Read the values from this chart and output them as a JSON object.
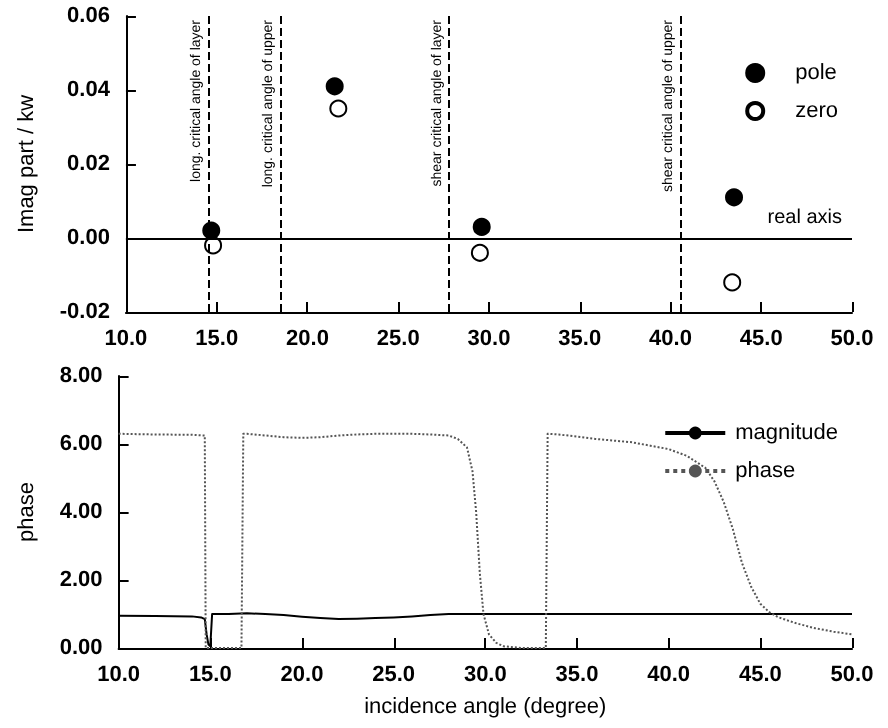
{
  "chart_data": [
    {
      "type": "scatter",
      "ylabel": "Imag part / kw",
      "xlim": [
        10,
        50
      ],
      "xticks": [
        {
          "value": 10,
          "label": "10.0"
        },
        {
          "value": 15,
          "label": "15.0"
        },
        {
          "value": 20,
          "label": "20.0"
        },
        {
          "value": 25,
          "label": "25.0"
        },
        {
          "value": 30,
          "label": "30.0"
        },
        {
          "value": 35,
          "label": "35.0"
        },
        {
          "value": 40,
          "label": "40.0"
        },
        {
          "value": 45,
          "label": "45.0"
        },
        {
          "value": 50,
          "label": "50.0"
        }
      ],
      "ylim": [
        -0.02,
        0.06
      ],
      "yticks": [
        {
          "value": -0.02,
          "label": "-0.02"
        },
        {
          "value": 0,
          "label": "0.00"
        },
        {
          "value": 0.02,
          "label": "0.02"
        },
        {
          "value": 0.04,
          "label": "0.04"
        },
        {
          "value": 0.06,
          "label": "0.06"
        }
      ],
      "series": [
        {
          "name": "pole",
          "color": "#000000",
          "x": [
            14.7,
            21.5,
            29.6,
            43.5
          ],
          "values": [
            0.002,
            0.041,
            0.003,
            0.011
          ]
        },
        {
          "name": "zero",
          "color": "#ffffff",
          "x": [
            14.8,
            21.7,
            29.5,
            43.4
          ],
          "values": [
            -0.002,
            0.035,
            -0.004,
            -0.012
          ]
        }
      ],
      "ref_lines": [
        {
          "axis": "y",
          "value": 0,
          "label": "real axis",
          "line_style": "solid"
        },
        {
          "axis": "x",
          "value": 14.5,
          "label": "long. critical angle of layer",
          "line_style": "dashed"
        },
        {
          "axis": "x",
          "value": 18.5,
          "label": "long. critical angle of upper",
          "line_style": "dashed"
        },
        {
          "axis": "x",
          "value": 27.8,
          "label": "shear critical angle of layer",
          "line_style": "dashed"
        },
        {
          "axis": "x",
          "value": 40.5,
          "label": "shear critical angle of upper",
          "line_style": "dashed"
        }
      ],
      "marker": "circle",
      "legend": "top right",
      "grid": false
    },
    {
      "type": "line",
      "xlabel": "incidence angle (degree)",
      "ylabel": "phase",
      "xlim": [
        10,
        50
      ],
      "xticks": [
        {
          "value": 10,
          "label": "10.0"
        },
        {
          "value": 15,
          "label": "15.0"
        },
        {
          "value": 20,
          "label": "20.0"
        },
        {
          "value": 25,
          "label": "25.0"
        },
        {
          "value": 30,
          "label": "30.0"
        },
        {
          "value": 35,
          "label": "35.0"
        },
        {
          "value": 40,
          "label": "40.0"
        },
        {
          "value": 45,
          "label": "45.0"
        },
        {
          "value": 50,
          "label": "50.0"
        }
      ],
      "ylim": [
        0,
        8
      ],
      "yticks": [
        {
          "value": 0,
          "label": "0.00"
        },
        {
          "value": 2,
          "label": "2.00"
        },
        {
          "value": 4,
          "label": "4.00"
        },
        {
          "value": 6,
          "label": "6.00"
        },
        {
          "value": 8,
          "label": "8.00"
        }
      ],
      "series": [
        {
          "name": "magnitude",
          "color": "#000000",
          "line_style": "solid",
          "x": [
            10,
            12,
            14,
            14.5,
            14.7,
            14.8,
            14.9,
            15.0,
            15.1,
            16,
            17,
            18,
            19,
            20,
            21,
            22,
            23,
            24,
            25,
            26,
            27,
            28,
            30,
            35,
            40,
            45,
            50
          ],
          "values": [
            0.95,
            0.94,
            0.93,
            0.9,
            0.85,
            0.4,
            0.1,
            0.05,
            1.0,
            1.0,
            1.02,
            1.0,
            0.97,
            0.92,
            0.88,
            0.85,
            0.86,
            0.88,
            0.9,
            0.93,
            0.97,
            1.0,
            1.0,
            1.0,
            1.0,
            1.0,
            1.0
          ]
        },
        {
          "name": "phase",
          "color": "#555555",
          "line_style": "dotted",
          "x": [
            10,
            12,
            14,
            14.7,
            14.75,
            15,
            16,
            16.7,
            16.8,
            17,
            18,
            19,
            20,
            21,
            22,
            23,
            24,
            25,
            26,
            27,
            28,
            28.5,
            29,
            29.3,
            29.5,
            29.7,
            29.9,
            30.2,
            30.6,
            31,
            32,
            33.3,
            33.4,
            34,
            35,
            36,
            37,
            38,
            39,
            40,
            41,
            42,
            42.5,
            43,
            43.5,
            44,
            44.5,
            45,
            45.5,
            46,
            47,
            48,
            49,
            50
          ],
          "values": [
            6.3,
            6.28,
            6.27,
            6.25,
            0,
            0,
            0,
            0,
            6.3,
            6.3,
            6.25,
            6.2,
            6.18,
            6.2,
            6.25,
            6.28,
            6.3,
            6.3,
            6.3,
            6.28,
            6.25,
            6.15,
            5.9,
            5.2,
            4.0,
            2.2,
            1.0,
            0.4,
            0.15,
            0.05,
            0,
            0,
            6.3,
            6.28,
            6.22,
            6.15,
            6.1,
            6.05,
            5.95,
            5.85,
            5.65,
            5.3,
            4.9,
            4.3,
            3.5,
            2.5,
            1.8,
            1.3,
            1.05,
            0.9,
            0.72,
            0.58,
            0.48,
            0.4
          ]
        }
      ],
      "legend": "top right",
      "grid": false
    }
  ]
}
